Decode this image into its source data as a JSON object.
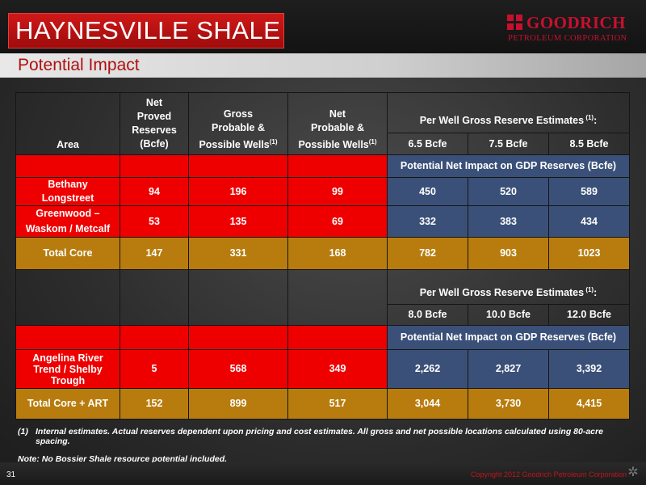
{
  "header": {
    "title": "HAYNESVILLE SHALE",
    "subtitle": "Potential Impact",
    "logo_name": "GOODRICH",
    "logo_sub": "PETROLEUM CORPORATION"
  },
  "table": {
    "columns": {
      "area": "Area",
      "net_proved": [
        "Net",
        "Proved",
        "Reserves",
        "(Bcfe)"
      ],
      "gross_possible": [
        "Gross",
        "Probable &",
        "Possible Wells"
      ],
      "net_possible": [
        "Net",
        "Probable &",
        "Possible Wells"
      ],
      "footnote_mark": "(1)"
    },
    "section1": {
      "estimates_header": "Per Well Gross Reserve Estimates",
      "estimates_sup": " (1)",
      "estimates_colon": ":",
      "scenarios": [
        "6.5 Bcfe",
        "7.5 Bcfe",
        "8.5 Bcfe"
      ],
      "impact_label": "Potential Net Impact on GDP Reserves (Bcfe)",
      "rows": [
        {
          "area": [
            "Bethany",
            "Longstreet"
          ],
          "net_proved": "94",
          "gross": "196",
          "net": "99",
          "s1": "450",
          "s2": "520",
          "s3": "589"
        },
        {
          "area": [
            "Greenwood –",
            "Waskom / Metcalf"
          ],
          "net_proved": "53",
          "gross": "135",
          "net": "69",
          "s1": "332",
          "s2": "383",
          "s3": "434"
        }
      ],
      "total": {
        "area": "Total Core",
        "net_proved": "147",
        "gross": "331",
        "net": "168",
        "s1": "782",
        "s2": "903",
        "s3": "1023"
      }
    },
    "section2": {
      "estimates_header": "Per Well Gross Reserve Estimates",
      "estimates_sup": " (1)",
      "estimates_colon": ":",
      "scenarios": [
        "8.0 Bcfe",
        "10.0 Bcfe",
        "12.0 Bcfe"
      ],
      "impact_label": "Potential Net Impact on GDP Reserves (Bcfe)",
      "row": {
        "area": [
          "Angelina River",
          "Trend / Shelby",
          "Trough"
        ],
        "net_proved": "5",
        "gross": "568",
        "net": "349",
        "s1": "2,262",
        "s2": "2,827",
        "s3": "3,392"
      },
      "total": {
        "area": "Total Core + ART",
        "net_proved": "152",
        "gross": "899",
        "net": "517",
        "s1": "3,044",
        "s2": "3,730",
        "s3": "4,415"
      }
    }
  },
  "notes": {
    "note1_num": "(1)",
    "note1_text": "Internal estimates.  Actual reserves dependent upon pricing and cost estimates.  All gross and net possible locations calculated using 80-acre spacing.",
    "note2": "Note:  No Bossier Shale resource potential included."
  },
  "footer": {
    "page_number": "31",
    "copyright": "Copyright 2012 Goodrich Petroleum Corporation"
  },
  "colors": {
    "title_red": "#c01010",
    "cell_red": "#ee0000",
    "cell_blue": "#3a5078",
    "cell_orange": "#b87c0e"
  }
}
